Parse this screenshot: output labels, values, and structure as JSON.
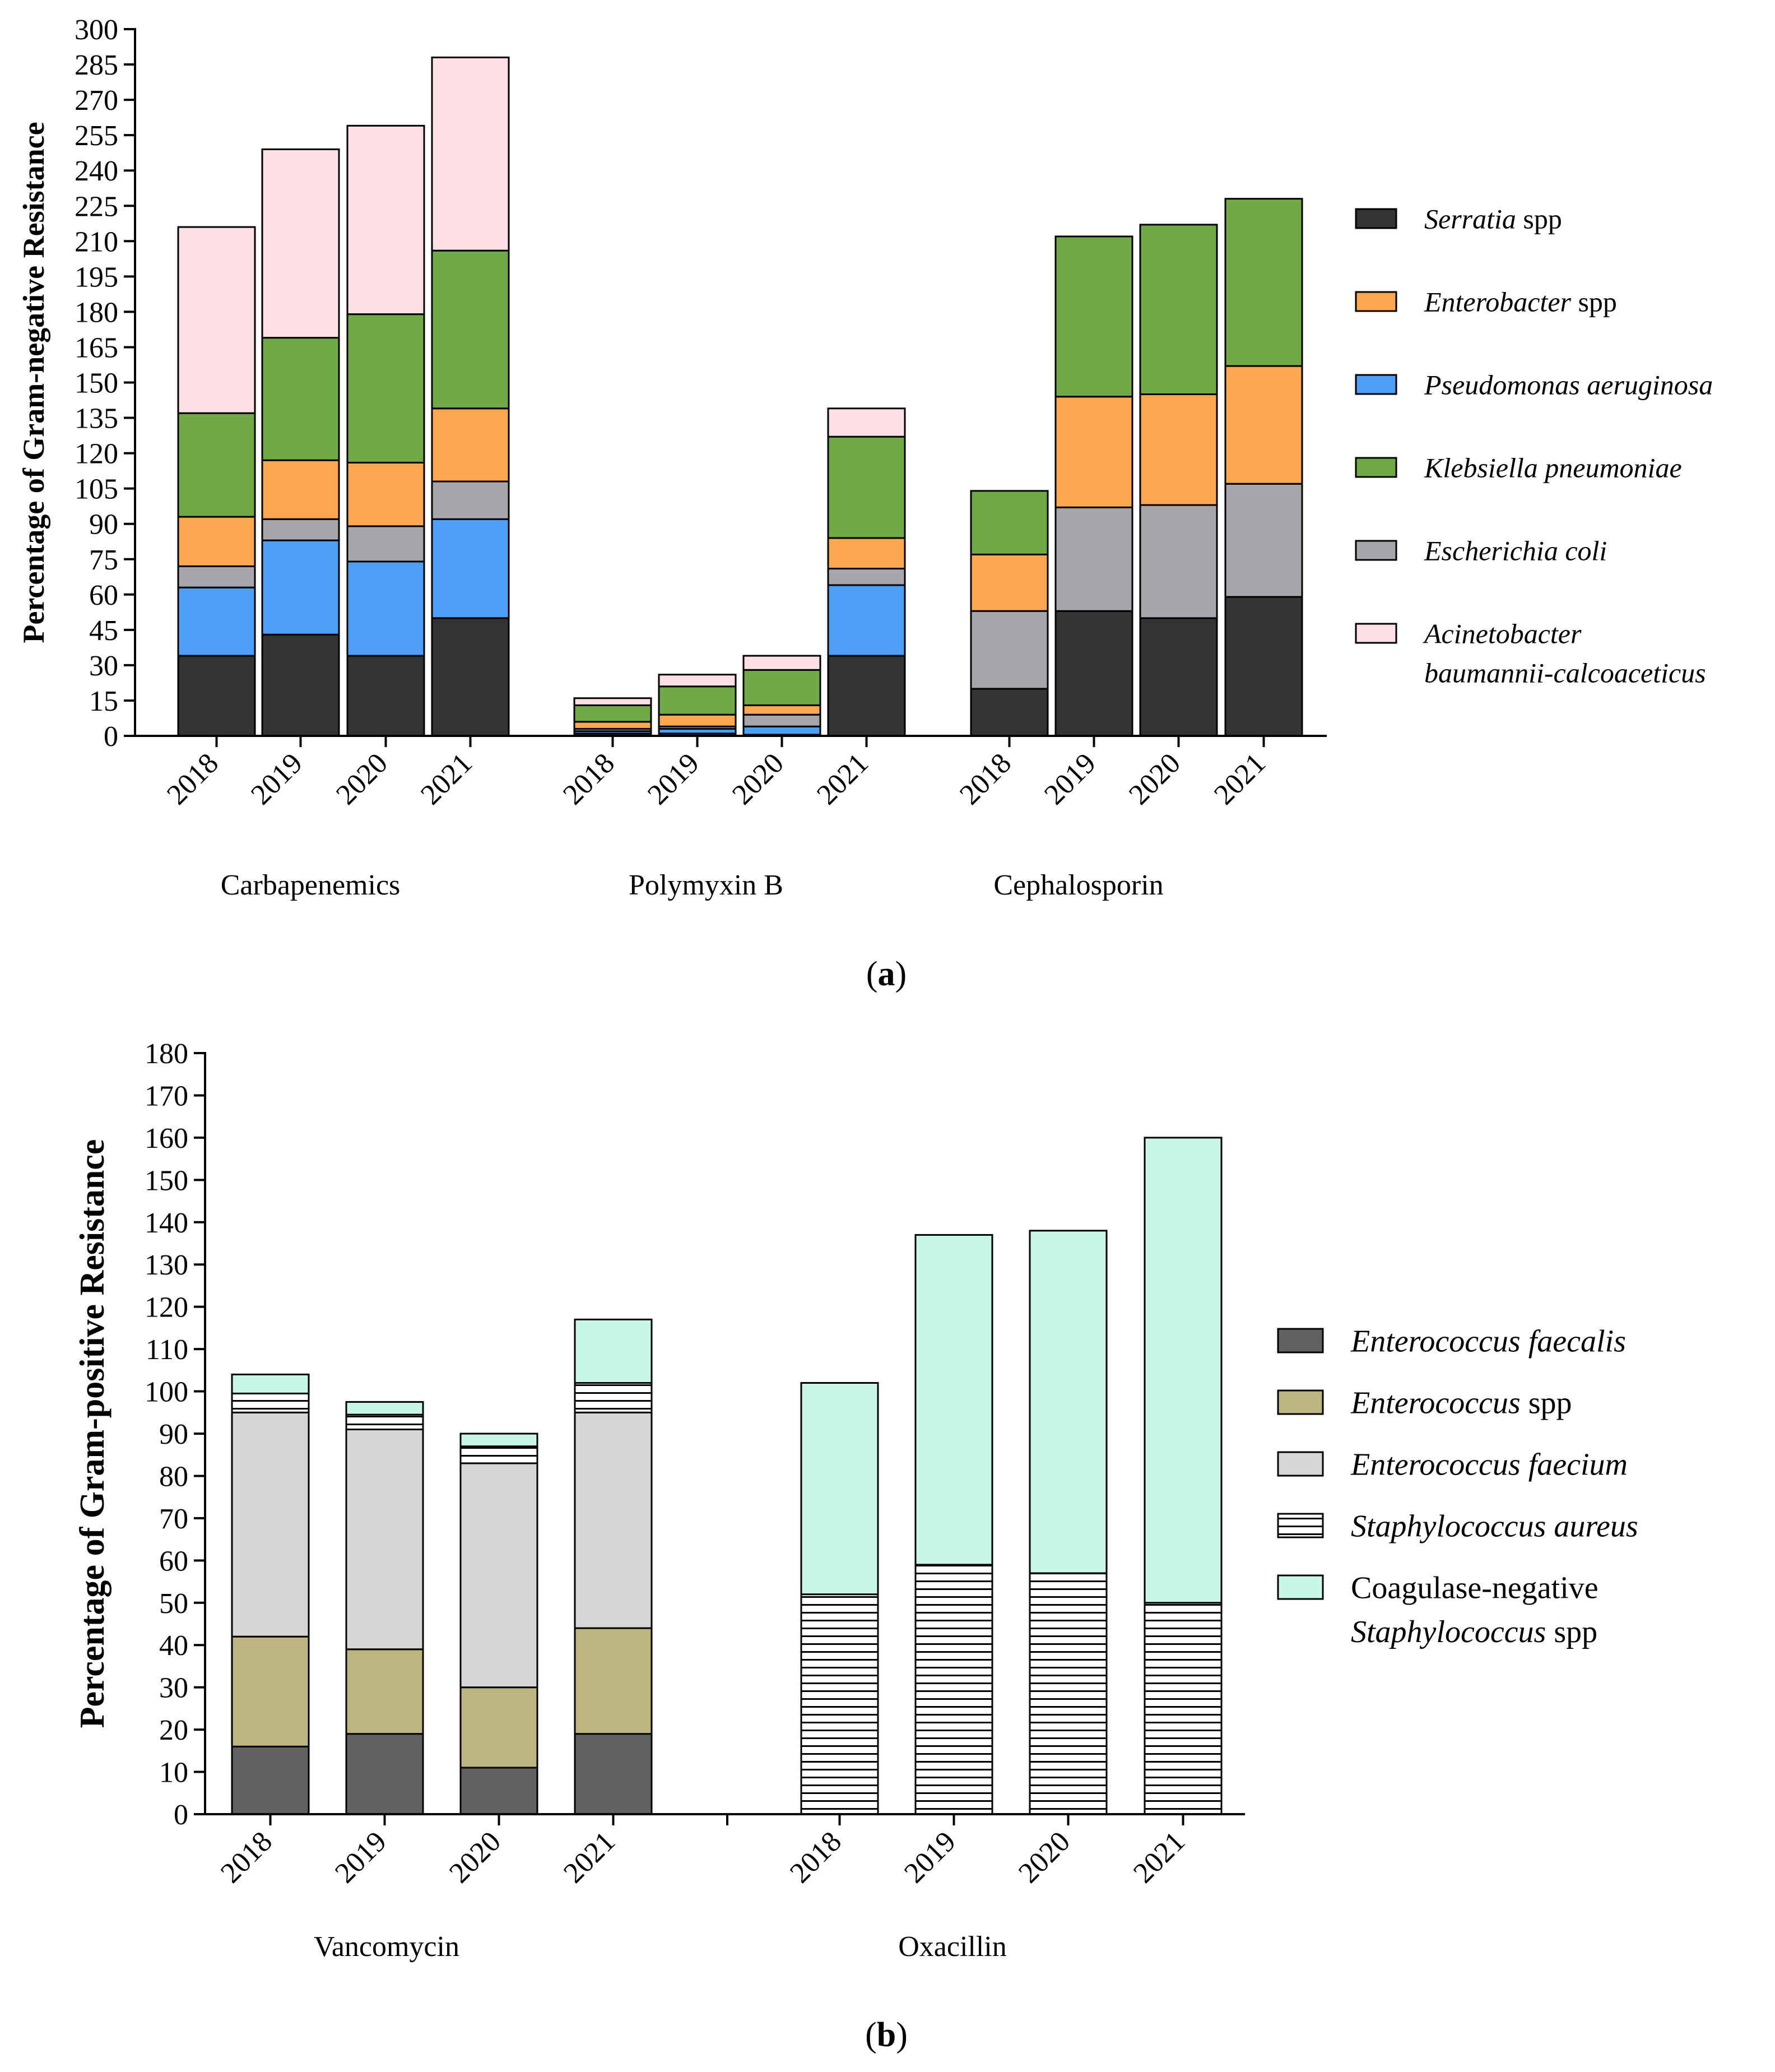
{
  "chart_data": [
    {
      "type": "bar",
      "stacked": true,
      "panel_label": "(a)",
      "ylabel": "Percentage of Gram-negative Resistance",
      "ylim": [
        0,
        300
      ],
      "yticks": [
        0,
        15,
        30,
        45,
        60,
        75,
        90,
        105,
        120,
        135,
        150,
        165,
        180,
        195,
        210,
        225,
        240,
        255,
        270,
        285,
        300
      ],
      "groups": [
        {
          "name": "Carbapenemics",
          "categories": [
            "2018",
            "2019",
            "2020",
            "2021"
          ]
        },
        {
          "name": "Polymyxin B",
          "categories": [
            "2018",
            "2019",
            "2020",
            "2021"
          ]
        },
        {
          "name": "Cephalosporin",
          "categories": [
            "2018",
            "2019",
            "2020",
            "2021"
          ]
        }
      ],
      "series": [
        {
          "name": "Serratia spp",
          "italic": "Serratia",
          "plain": " spp",
          "color": "#333333",
          "values": [
            34,
            43,
            34,
            50,
            1,
            1,
            0.5,
            34,
            20,
            53,
            50,
            59
          ]
        },
        {
          "name": "Pseudomonas aeruginosa",
          "italic": "Pseudomonas aeruginosa",
          "plain": "",
          "color": "#4d9ff5",
          "values": [
            29,
            40,
            40,
            42,
            1,
            2,
            3.5,
            30,
            0,
            0,
            0,
            0
          ]
        },
        {
          "name": "Escherichia coli",
          "italic": "Escherichia coli",
          "plain": "",
          "color": "#a7a6ac",
          "values": [
            9,
            9,
            15,
            16,
            1,
            1,
            5,
            7,
            33,
            44,
            48,
            48
          ]
        },
        {
          "name": "Enterobacter spp",
          "italic": "Enterobacter",
          "plain": " spp",
          "color": "#fba74f",
          "values": [
            21,
            25,
            27,
            31,
            3,
            5,
            4,
            13,
            24,
            47,
            47,
            50
          ]
        },
        {
          "name": "Klebsiella pneumoniae",
          "italic": "Klebsiella pneumoniae",
          "plain": "",
          "color": "#70aa46",
          "values": [
            44,
            52,
            63,
            67,
            7,
            12,
            15,
            43,
            27,
            68,
            72,
            71
          ]
        },
        {
          "name": "Acinetobacter baumannii-calcoaceticus",
          "italic": "Acinetobacter baumannii-calcoaceticus",
          "plain": "",
          "color": "#fde0e3",
          "values": [
            79,
            80,
            80,
            82,
            3,
            5,
            6,
            12,
            0,
            0,
            0,
            0
          ]
        }
      ],
      "legend": [
        {
          "italic": "Serratia",
          "plain": " spp",
          "color": "#333333"
        },
        {
          "italic": "Enterobacter",
          "plain": " spp",
          "color": "#fba74f"
        },
        {
          "italic": "Pseudomonas aeruginosa",
          "plain": "",
          "color": "#4d9ff5"
        },
        {
          "italic": "Klebsiella pneumoniae",
          "plain": "",
          "color": "#70aa46"
        },
        {
          "italic": "Escherichia coli",
          "plain": "",
          "color": "#a7a6ac"
        },
        {
          "italic": "Acinetobacter",
          "plain": "",
          "italic2": "baumannii-calcoaceticus",
          "color": "#fde0e3"
        }
      ]
    },
    {
      "type": "bar",
      "stacked": true,
      "panel_label": "(b)",
      "ylabel": "Percentage of Gram-positive Resistance",
      "ylim": [
        0,
        180
      ],
      "yticks": [
        0,
        10,
        20,
        30,
        40,
        50,
        60,
        70,
        80,
        90,
        100,
        110,
        120,
        130,
        140,
        150,
        160,
        170,
        180
      ],
      "groups": [
        {
          "name": "Vancomycin",
          "categories": [
            "2018",
            "2019",
            "2020",
            "2021"
          ]
        },
        {
          "name": "Oxacillin",
          "categories": [
            "2018",
            "2019",
            "2020",
            "2021"
          ]
        }
      ],
      "series": [
        {
          "name": "Enterococcus faecalis",
          "color": "#616161",
          "pattern": "solid",
          "values": [
            16,
            19,
            11,
            19,
            0,
            0,
            0,
            0
          ]
        },
        {
          "name": "Enterococcus spp",
          "color": "#bdb57f",
          "pattern": "solid",
          "values": [
            26,
            20,
            19,
            25,
            0,
            0,
            0,
            0
          ]
        },
        {
          "name": "Enterococcus faecium",
          "color": "#d6d6d6",
          "pattern": "solid",
          "values": [
            53,
            52,
            53,
            51,
            0,
            0,
            0,
            0
          ]
        },
        {
          "name": "Staphylococcus aureus",
          "color": "#ffffff",
          "pattern": "hlines",
          "values": [
            4.5,
            3.5,
            4,
            7,
            52,
            59,
            57,
            50
          ]
        },
        {
          "name": "Coagulase-negative Staphylococcus spp",
          "color": "#c9f7e6",
          "pattern": "solid",
          "values": [
            4.5,
            3,
            3,
            15,
            50,
            78,
            81,
            110
          ]
        }
      ],
      "legend": [
        {
          "italic": "Enterococcus faecalis",
          "plain": "",
          "color": "#616161",
          "pattern": "solid"
        },
        {
          "italic": "Enterococcus",
          "plain": " spp",
          "color": "#bdb57f",
          "pattern": "solid"
        },
        {
          "italic": "Enterococcus faecium",
          "plain": "",
          "color": "#d6d6d6",
          "pattern": "solid"
        },
        {
          "italic": "Staphylococcus aureus",
          "plain": "",
          "color": "#ffffff",
          "pattern": "hlines"
        },
        {
          "italic": "",
          "plain": "Coagulase-negative",
          "italic2": "Staphylococcus",
          "plain2": " spp",
          "color": "#c9f7e6",
          "pattern": "solid"
        }
      ]
    }
  ]
}
